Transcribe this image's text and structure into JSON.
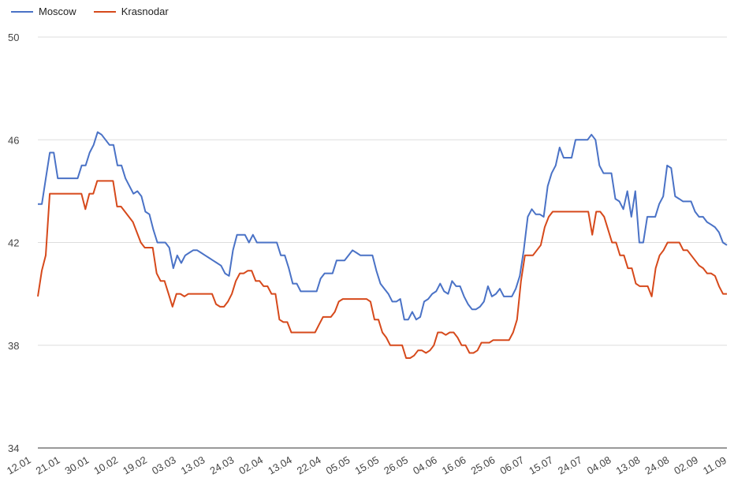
{
  "chart_data": {
    "type": "line",
    "title": "",
    "xlabel": "",
    "ylabel": "",
    "ylim": [
      34,
      50
    ],
    "yticks": [
      "50",
      "46",
      "42",
      "38",
      "34"
    ],
    "grid": true,
    "legend_position": "top-left",
    "x_tick_labels": [
      "12.01",
      "21.01",
      "30.01",
      "10.02",
      "19.02",
      "03.03",
      "13.03",
      "24.03",
      "02.04",
      "13.04",
      "22.04",
      "05.05",
      "15.05",
      "26.05",
      "04.06",
      "16.06",
      "25.06",
      "06.07",
      "15.07",
      "24.07",
      "04.08",
      "13.08",
      "24.08",
      "02.09",
      "11.09"
    ],
    "series": [
      {
        "name": "Moscow",
        "color": "#4a72c6",
        "values": [
          43.5,
          43.5,
          44.5,
          45.5,
          45.5,
          44.5,
          44.5,
          44.5,
          44.5,
          44.5,
          44.5,
          45.0,
          45.0,
          45.5,
          45.8,
          46.3,
          46.2,
          46.0,
          45.8,
          45.8,
          45.0,
          45.0,
          44.5,
          44.2,
          43.9,
          44.0,
          43.8,
          43.2,
          43.1,
          42.5,
          42.0,
          42.0,
          42.0,
          41.8,
          41.0,
          41.5,
          41.2,
          41.5,
          41.6,
          41.7,
          41.7,
          41.6,
          41.5,
          41.4,
          41.3,
          41.2,
          41.1,
          40.8,
          40.7,
          41.7,
          42.3,
          42.3,
          42.3,
          42.0,
          42.3,
          42.0,
          42.0,
          42.0,
          42.0,
          42.0,
          42.0,
          41.5,
          41.5,
          41.0,
          40.4,
          40.4,
          40.1,
          40.1,
          40.1,
          40.1,
          40.1,
          40.6,
          40.8,
          40.8,
          40.8,
          41.3,
          41.3,
          41.3,
          41.5,
          41.7,
          41.6,
          41.5,
          41.5,
          41.5,
          41.5,
          40.9,
          40.4,
          40.2,
          40.0,
          39.7,
          39.7,
          39.8,
          39.0,
          39.0,
          39.3,
          39.0,
          39.1,
          39.7,
          39.8,
          40.0,
          40.1,
          40.4,
          40.1,
          40.0,
          40.5,
          40.3,
          40.3,
          39.9,
          39.6,
          39.4,
          39.4,
          39.5,
          39.7,
          40.3,
          39.9,
          40.0,
          40.2,
          39.9,
          39.9,
          39.9,
          40.2,
          40.7,
          41.7,
          43.0,
          43.3,
          43.1,
          43.1,
          43.0,
          44.2,
          44.7,
          45.0,
          45.7,
          45.3,
          45.3,
          45.3,
          46.0,
          46.0,
          46.0,
          46.0,
          46.2,
          46.0,
          45.0,
          44.7,
          44.7,
          44.7,
          43.7,
          43.6,
          43.3,
          44.0,
          43.0,
          44.0,
          42.0,
          42.0,
          43.0,
          43.0,
          43.0,
          43.5,
          43.8,
          45.0,
          44.9,
          43.8,
          43.7,
          43.6,
          43.6,
          43.6,
          43.2,
          43.0,
          43.0,
          42.8,
          42.7,
          42.6,
          42.4,
          42.0,
          41.9
        ]
      },
      {
        "name": "Krasnodar",
        "color": "#d6491b",
        "values": [
          39.9,
          40.9,
          41.5,
          43.9,
          43.9,
          43.9,
          43.9,
          43.9,
          43.9,
          43.9,
          43.9,
          43.9,
          43.3,
          43.9,
          43.9,
          44.4,
          44.4,
          44.4,
          44.4,
          44.4,
          43.4,
          43.4,
          43.2,
          43.0,
          42.8,
          42.4,
          42.0,
          41.8,
          41.8,
          41.8,
          40.8,
          40.5,
          40.5,
          40.0,
          39.5,
          40.0,
          40.0,
          39.9,
          40.0,
          40.0,
          40.0,
          40.0,
          40.0,
          40.0,
          40.0,
          39.6,
          39.5,
          39.5,
          39.7,
          40.0,
          40.5,
          40.8,
          40.8,
          40.9,
          40.9,
          40.5,
          40.5,
          40.3,
          40.3,
          40.0,
          40.0,
          39.0,
          38.9,
          38.9,
          38.5,
          38.5,
          38.5,
          38.5,
          38.5,
          38.5,
          38.5,
          38.8,
          39.1,
          39.1,
          39.1,
          39.3,
          39.7,
          39.8,
          39.8,
          39.8,
          39.8,
          39.8,
          39.8,
          39.8,
          39.7,
          39.0,
          39.0,
          38.5,
          38.3,
          38.0,
          38.0,
          38.0,
          38.0,
          37.5,
          37.5,
          37.6,
          37.8,
          37.8,
          37.7,
          37.8,
          38.0,
          38.5,
          38.5,
          38.4,
          38.5,
          38.5,
          38.3,
          38.0,
          38.0,
          37.7,
          37.7,
          37.8,
          38.1,
          38.1,
          38.1,
          38.2,
          38.2,
          38.2,
          38.2,
          38.2,
          38.5,
          39.0,
          40.5,
          41.5,
          41.5,
          41.5,
          41.7,
          41.9,
          42.6,
          43.0,
          43.2,
          43.2,
          43.2,
          43.2,
          43.2,
          43.2,
          43.2,
          43.2,
          43.2,
          43.2,
          42.3,
          43.2,
          43.2,
          43.0,
          42.5,
          42.0,
          42.0,
          41.5,
          41.5,
          41.0,
          41.0,
          40.4,
          40.3,
          40.3,
          40.3,
          39.9,
          41.0,
          41.5,
          41.7,
          42.0,
          42.0,
          42.0,
          42.0,
          41.7,
          41.7,
          41.5,
          41.3,
          41.1,
          41.0,
          40.8,
          40.8,
          40.7,
          40.3,
          40.0,
          40.0
        ]
      }
    ]
  }
}
